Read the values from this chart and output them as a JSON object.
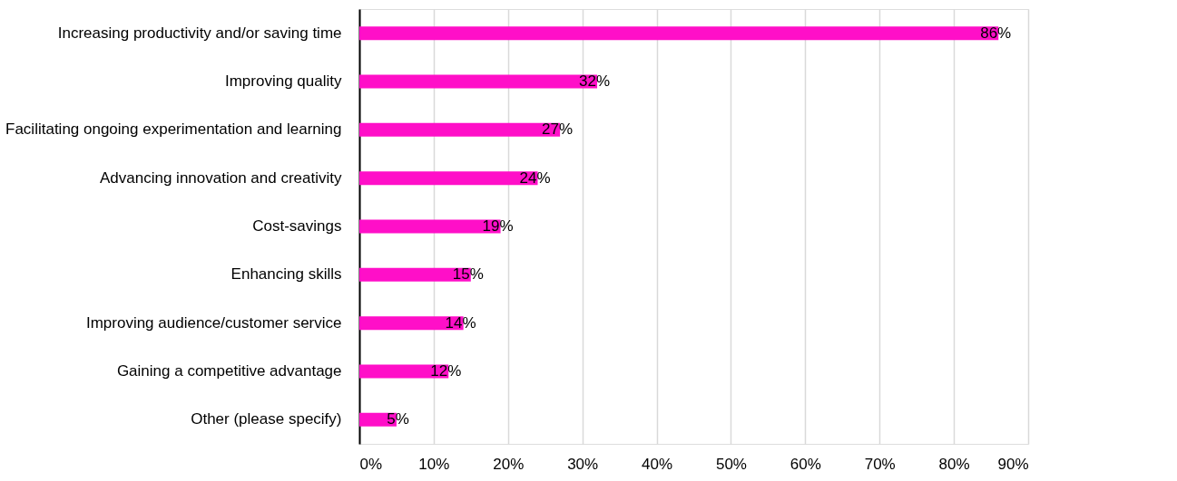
{
  "chart_data": {
    "type": "bar",
    "orientation": "horizontal",
    "categories": [
      "Increasing productivity and/or saving time",
      "Improving quality",
      "Facilitating ongoing experimentation and learning",
      "Advancing innovation and creativity",
      "Cost-savings",
      "Enhancing skills",
      "Improving audience/customer service",
      "Gaining a competitive advantage",
      "Other (please specify)"
    ],
    "values": [
      86,
      32,
      27,
      24,
      19,
      15,
      14,
      12,
      5
    ],
    "value_labels": [
      "86%",
      "32%",
      "27%",
      "24%",
      "19%",
      "15%",
      "14%",
      "12%",
      "5%"
    ],
    "color": "#ff0fc8",
    "xlim": [
      0,
      90
    ],
    "xticks": [
      {
        "value": 0,
        "label": "0%"
      },
      {
        "value": 10,
        "label": "10%"
      },
      {
        "value": 20,
        "label": "20%"
      },
      {
        "value": 30,
        "label": "30%"
      },
      {
        "value": 40,
        "label": "40%"
      },
      {
        "value": 50,
        "label": "50%"
      },
      {
        "value": 60,
        "label": "60%"
      },
      {
        "value": 70,
        "label": "70%"
      },
      {
        "value": 80,
        "label": "80%"
      },
      {
        "value": 90,
        "label": "90%"
      }
    ],
    "grid": "x"
  }
}
